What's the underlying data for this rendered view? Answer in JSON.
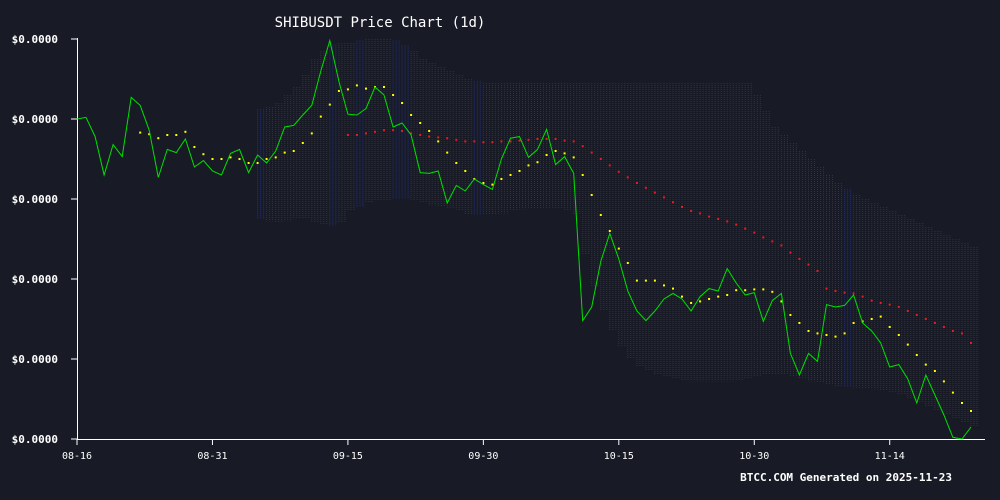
{
  "chart_data": {
    "type": "line",
    "title": "SHIBUSDT Price Chart (1d)",
    "footer": "BTCC.COM Generated on 2025-11-23",
    "x_tick_labels": [
      "08-16",
      "08-31",
      "09-15",
      "09-30",
      "10-15",
      "10-30",
      "11-14"
    ],
    "x_tick_days": [
      0,
      15,
      30,
      45,
      60,
      75,
      90
    ],
    "y_tick_labels": [
      "$0.0000",
      "$0.0000",
      "$0.0000",
      "$0.0000",
      "$0.0000",
      "$0.0000"
    ],
    "y_tick_values": [
      0,
      1,
      2,
      3,
      4,
      5
    ],
    "ylim": [
      0,
      5
    ],
    "xlim_days": [
      0,
      99
    ],
    "colors": {
      "background": "#181b26",
      "price": "#00e000",
      "ma_short": "#ffff00",
      "ma_long": "#e02020",
      "band": "#1e2f8a",
      "axis": "#ffffff"
    },
    "price": [
      [
        0,
        4.0
      ],
      [
        1,
        4.02
      ],
      [
        2,
        3.78
      ],
      [
        3,
        3.3
      ],
      [
        4,
        3.68
      ],
      [
        5,
        3.53
      ],
      [
        6,
        4.27
      ],
      [
        7,
        4.17
      ],
      [
        8,
        3.86
      ],
      [
        9,
        3.27
      ],
      [
        10,
        3.62
      ],
      [
        11,
        3.58
      ],
      [
        12,
        3.75
      ],
      [
        13,
        3.4
      ],
      [
        14,
        3.48
      ],
      [
        15,
        3.35
      ],
      [
        16,
        3.3
      ],
      [
        17,
        3.57
      ],
      [
        18,
        3.62
      ],
      [
        19,
        3.33
      ],
      [
        20,
        3.55
      ],
      [
        21,
        3.45
      ],
      [
        22,
        3.6
      ],
      [
        23,
        3.9
      ],
      [
        24,
        3.92
      ],
      [
        25,
        4.05
      ],
      [
        26,
        4.17
      ],
      [
        27,
        4.6
      ],
      [
        28,
        4.98
      ],
      [
        29,
        4.47
      ],
      [
        30,
        4.06
      ],
      [
        31,
        4.05
      ],
      [
        32,
        4.13
      ],
      [
        33,
        4.4
      ],
      [
        34,
        4.3
      ],
      [
        35,
        3.9
      ],
      [
        36,
        3.95
      ],
      [
        37,
        3.8
      ],
      [
        38,
        3.33
      ],
      [
        39,
        3.32
      ],
      [
        40,
        3.35
      ],
      [
        41,
        2.95
      ],
      [
        42,
        3.17
      ],
      [
        43,
        3.1
      ],
      [
        44,
        3.25
      ],
      [
        45,
        3.18
      ],
      [
        46,
        3.12
      ],
      [
        47,
        3.5
      ],
      [
        48,
        3.76
      ],
      [
        49,
        3.78
      ],
      [
        50,
        3.52
      ],
      [
        51,
        3.62
      ],
      [
        52,
        3.87
      ],
      [
        53,
        3.43
      ],
      [
        54,
        3.53
      ],
      [
        55,
        3.32
      ],
      [
        56,
        1.48
      ],
      [
        57,
        1.65
      ],
      [
        58,
        2.22
      ],
      [
        59,
        2.57
      ],
      [
        60,
        2.25
      ],
      [
        61,
        1.85
      ],
      [
        62,
        1.6
      ],
      [
        63,
        1.48
      ],
      [
        64,
        1.6
      ],
      [
        65,
        1.75
      ],
      [
        66,
        1.82
      ],
      [
        67,
        1.75
      ],
      [
        68,
        1.6
      ],
      [
        69,
        1.78
      ],
      [
        70,
        1.88
      ],
      [
        71,
        1.85
      ],
      [
        72,
        2.13
      ],
      [
        73,
        1.95
      ],
      [
        74,
        1.8
      ],
      [
        75,
        1.83
      ],
      [
        76,
        1.47
      ],
      [
        77,
        1.73
      ],
      [
        78,
        1.82
      ],
      [
        79,
        1.07
      ],
      [
        80,
        0.8
      ],
      [
        81,
        1.07
      ],
      [
        82,
        0.97
      ],
      [
        83,
        1.68
      ],
      [
        84,
        1.65
      ],
      [
        85,
        1.67
      ],
      [
        86,
        1.8
      ],
      [
        87,
        1.45
      ],
      [
        88,
        1.35
      ],
      [
        89,
        1.2
      ],
      [
        90,
        0.9
      ],
      [
        91,
        0.93
      ],
      [
        92,
        0.75
      ],
      [
        93,
        0.45
      ],
      [
        94,
        0.8
      ],
      [
        95,
        0.55
      ],
      [
        96,
        0.3
      ],
      [
        97,
        0.02
      ],
      [
        98,
        0.0
      ],
      [
        99,
        0.15
      ]
    ],
    "ma_short": [
      [
        7,
        3.83
      ],
      [
        8,
        3.81
      ],
      [
        9,
        3.76
      ],
      [
        10,
        3.8
      ],
      [
        11,
        3.8
      ],
      [
        12,
        3.84
      ],
      [
        13,
        3.65
      ],
      [
        14,
        3.56
      ],
      [
        15,
        3.5
      ],
      [
        16,
        3.5
      ],
      [
        17,
        3.52
      ],
      [
        18,
        3.5
      ],
      [
        19,
        3.45
      ],
      [
        20,
        3.45
      ],
      [
        21,
        3.5
      ],
      [
        22,
        3.52
      ],
      [
        23,
        3.58
      ],
      [
        24,
        3.6
      ],
      [
        25,
        3.7
      ],
      [
        26,
        3.82
      ],
      [
        27,
        4.03
      ],
      [
        28,
        4.18
      ],
      [
        29,
        4.35
      ],
      [
        30,
        4.37
      ],
      [
        31,
        4.42
      ],
      [
        32,
        4.38
      ],
      [
        33,
        4.4
      ],
      [
        34,
        4.4
      ],
      [
        35,
        4.3
      ],
      [
        36,
        4.2
      ],
      [
        37,
        4.05
      ],
      [
        38,
        3.95
      ],
      [
        39,
        3.85
      ],
      [
        40,
        3.72
      ],
      [
        41,
        3.58
      ],
      [
        42,
        3.45
      ],
      [
        43,
        3.35
      ],
      [
        44,
        3.25
      ],
      [
        45,
        3.2
      ],
      [
        46,
        3.18
      ],
      [
        47,
        3.25
      ],
      [
        48,
        3.3
      ],
      [
        49,
        3.35
      ],
      [
        50,
        3.42
      ],
      [
        51,
        3.46
      ],
      [
        52,
        3.55
      ],
      [
        53,
        3.6
      ],
      [
        54,
        3.57
      ],
      [
        55,
        3.52
      ],
      [
        56,
        3.3
      ],
      [
        57,
        3.05
      ],
      [
        58,
        2.8
      ],
      [
        59,
        2.6
      ],
      [
        60,
        2.38
      ],
      [
        61,
        2.2
      ],
      [
        62,
        1.98
      ],
      [
        63,
        1.98
      ],
      [
        64,
        1.98
      ],
      [
        65,
        1.92
      ],
      [
        66,
        1.88
      ],
      [
        67,
        1.78
      ],
      [
        68,
        1.7
      ],
      [
        69,
        1.72
      ],
      [
        70,
        1.75
      ],
      [
        71,
        1.78
      ],
      [
        72,
        1.8
      ],
      [
        73,
        1.86
      ],
      [
        74,
        1.86
      ],
      [
        75,
        1.87
      ],
      [
        76,
        1.87
      ],
      [
        77,
        1.84
      ],
      [
        78,
        1.72
      ],
      [
        79,
        1.55
      ],
      [
        80,
        1.45
      ],
      [
        81,
        1.35
      ],
      [
        82,
        1.32
      ],
      [
        83,
        1.3
      ],
      [
        84,
        1.28
      ],
      [
        85,
        1.32
      ],
      [
        86,
        1.45
      ],
      [
        87,
        1.47
      ],
      [
        88,
        1.5
      ],
      [
        89,
        1.53
      ],
      [
        90,
        1.4
      ],
      [
        91,
        1.3
      ],
      [
        92,
        1.18
      ],
      [
        93,
        1.05
      ],
      [
        94,
        0.93
      ],
      [
        95,
        0.85
      ],
      [
        96,
        0.72
      ],
      [
        97,
        0.58
      ],
      [
        98,
        0.45
      ],
      [
        99,
        0.35
      ]
    ],
    "ma_long": [
      [
        30,
        3.8
      ],
      [
        31,
        3.8
      ],
      [
        32,
        3.82
      ],
      [
        33,
        3.84
      ],
      [
        34,
        3.86
      ],
      [
        35,
        3.86
      ],
      [
        36,
        3.85
      ],
      [
        37,
        3.82
      ],
      [
        38,
        3.8
      ],
      [
        39,
        3.78
      ],
      [
        40,
        3.77
      ],
      [
        41,
        3.76
      ],
      [
        42,
        3.74
      ],
      [
        43,
        3.72
      ],
      [
        44,
        3.72
      ],
      [
        45,
        3.71
      ],
      [
        46,
        3.71
      ],
      [
        47,
        3.72
      ],
      [
        48,
        3.72
      ],
      [
        49,
        3.73
      ],
      [
        50,
        3.74
      ],
      [
        51,
        3.75
      ],
      [
        52,
        3.75
      ],
      [
        53,
        3.75
      ],
      [
        54,
        3.73
      ],
      [
        55,
        3.72
      ],
      [
        56,
        3.66
      ],
      [
        57,
        3.58
      ],
      [
        58,
        3.5
      ],
      [
        59,
        3.42
      ],
      [
        60,
        3.34
      ],
      [
        61,
        3.27
      ],
      [
        62,
        3.2
      ],
      [
        63,
        3.14
      ],
      [
        64,
        3.08
      ],
      [
        65,
        3.02
      ],
      [
        66,
        2.96
      ],
      [
        67,
        2.9
      ],
      [
        68,
        2.85
      ],
      [
        69,
        2.82
      ],
      [
        70,
        2.78
      ],
      [
        71,
        2.75
      ],
      [
        72,
        2.72
      ],
      [
        73,
        2.68
      ],
      [
        74,
        2.63
      ],
      [
        75,
        2.58
      ],
      [
        76,
        2.52
      ],
      [
        77,
        2.47
      ],
      [
        78,
        2.42
      ],
      [
        79,
        2.33
      ],
      [
        80,
        2.25
      ],
      [
        81,
        2.18
      ],
      [
        82,
        2.1
      ],
      [
        83,
        1.88
      ],
      [
        84,
        1.85
      ],
      [
        85,
        1.83
      ],
      [
        86,
        1.82
      ],
      [
        87,
        1.78
      ],
      [
        88,
        1.73
      ],
      [
        89,
        1.7
      ],
      [
        90,
        1.68
      ],
      [
        91,
        1.65
      ],
      [
        92,
        1.6
      ],
      [
        93,
        1.55
      ],
      [
        94,
        1.5
      ],
      [
        95,
        1.45
      ],
      [
        96,
        1.4
      ],
      [
        97,
        1.35
      ],
      [
        98,
        1.32
      ],
      [
        99,
        1.2
      ]
    ],
    "band": [
      [
        20,
        4.12,
        2.75
      ],
      [
        21,
        4.15,
        2.72
      ],
      [
        22,
        4.2,
        2.7
      ],
      [
        23,
        4.3,
        2.72
      ],
      [
        24,
        4.4,
        2.75
      ],
      [
        25,
        4.55,
        2.75
      ],
      [
        26,
        4.75,
        2.7
      ],
      [
        27,
        4.85,
        2.68
      ],
      [
        28,
        4.93,
        2.67
      ],
      [
        29,
        4.95,
        2.7
      ],
      [
        30,
        4.95,
        2.85
      ],
      [
        31,
        4.98,
        2.9
      ],
      [
        32,
        5.0,
        2.95
      ],
      [
        33,
        5.0,
        2.98
      ],
      [
        34,
        5.0,
        2.98
      ],
      [
        35,
        4.98,
        3.0
      ],
      [
        36,
        4.92,
        3.0
      ],
      [
        37,
        4.85,
        2.98
      ],
      [
        38,
        4.75,
        2.95
      ],
      [
        39,
        4.7,
        2.92
      ],
      [
        40,
        4.65,
        2.9
      ],
      [
        41,
        4.6,
        2.88
      ],
      [
        42,
        4.55,
        2.85
      ],
      [
        43,
        4.5,
        2.8
      ],
      [
        44,
        4.47,
        2.8
      ],
      [
        45,
        4.45,
        2.8
      ],
      [
        46,
        4.45,
        2.8
      ],
      [
        47,
        4.45,
        2.82
      ],
      [
        48,
        4.45,
        2.85
      ],
      [
        49,
        4.45,
        2.87
      ],
      [
        50,
        4.45,
        2.88
      ],
      [
        51,
        4.45,
        2.88
      ],
      [
        52,
        4.45,
        2.88
      ],
      [
        53,
        4.45,
        2.88
      ],
      [
        54,
        4.45,
        2.85
      ],
      [
        55,
        4.45,
        2.8
      ],
      [
        56,
        4.45,
        2.3
      ],
      [
        57,
        4.45,
        1.9
      ],
      [
        58,
        4.45,
        1.6
      ],
      [
        59,
        4.45,
        1.35
      ],
      [
        60,
        4.45,
        1.15
      ],
      [
        61,
        4.45,
        1.0
      ],
      [
        62,
        4.45,
        0.9
      ],
      [
        63,
        4.45,
        0.85
      ],
      [
        64,
        4.45,
        0.8
      ],
      [
        65,
        4.45,
        0.78
      ],
      [
        66,
        4.45,
        0.75
      ],
      [
        67,
        4.45,
        0.73
      ],
      [
        68,
        4.45,
        0.72
      ],
      [
        69,
        4.45,
        0.72
      ],
      [
        70,
        4.45,
        0.72
      ],
      [
        71,
        4.45,
        0.72
      ],
      [
        72,
        4.45,
        0.72
      ],
      [
        73,
        4.45,
        0.73
      ],
      [
        74,
        4.45,
        0.75
      ],
      [
        75,
        4.3,
        0.78
      ],
      [
        76,
        4.1,
        0.8
      ],
      [
        77,
        3.9,
        0.8
      ],
      [
        78,
        3.8,
        0.8
      ],
      [
        79,
        3.7,
        0.78
      ],
      [
        80,
        3.6,
        0.75
      ],
      [
        81,
        3.5,
        0.72
      ],
      [
        82,
        3.4,
        0.7
      ],
      [
        83,
        3.3,
        0.68
      ],
      [
        84,
        3.2,
        0.66
      ],
      [
        85,
        3.12,
        0.65
      ],
      [
        86,
        3.05,
        0.64
      ],
      [
        87,
        3.0,
        0.63
      ],
      [
        88,
        2.95,
        0.62
      ],
      [
        89,
        2.9,
        0.6
      ],
      [
        90,
        2.85,
        0.58
      ],
      [
        91,
        2.8,
        0.55
      ],
      [
        92,
        2.75,
        0.5
      ],
      [
        93,
        2.7,
        0.45
      ],
      [
        94,
        2.65,
        0.4
      ],
      [
        95,
        2.6,
        0.35
      ],
      [
        96,
        2.55,
        0.3
      ],
      [
        97,
        2.5,
        0.25
      ],
      [
        98,
        2.45,
        0.2
      ],
      [
        99,
        2.4,
        0.15
      ]
    ]
  }
}
